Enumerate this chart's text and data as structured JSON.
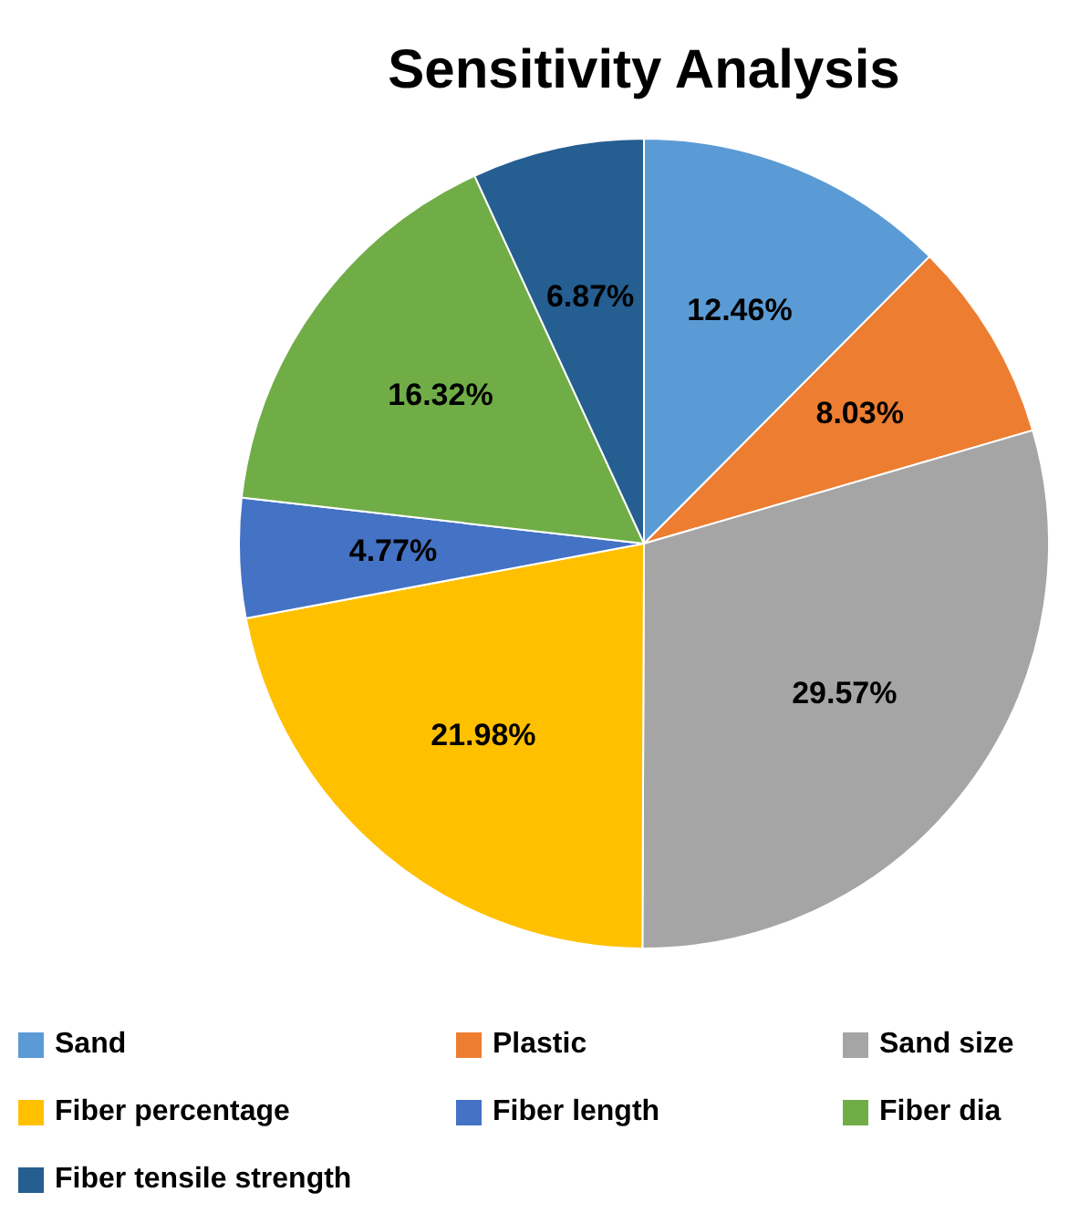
{
  "chart_data": {
    "type": "pie",
    "title": "Sensitivity Analysis",
    "categories": [
      "Sand",
      "Plastic",
      "Sand size",
      "Fiber percentage",
      "Fiber length",
      "Fiber dia",
      "Fiber tensile strength"
    ],
    "values": [
      12.46,
      8.03,
      29.57,
      21.98,
      4.77,
      16.32,
      6.87
    ],
    "value_labels": [
      "12.46%",
      "8.03%",
      "29.57%",
      "21.98%",
      "4.77%",
      "16.32%",
      "6.87%"
    ],
    "colors": [
      "#5b9bd5",
      "#ed7d31",
      "#a5a5a5",
      "#ffc000",
      "#4472c4",
      "#70ad47",
      "#255e91"
    ],
    "legend": "bottom"
  }
}
